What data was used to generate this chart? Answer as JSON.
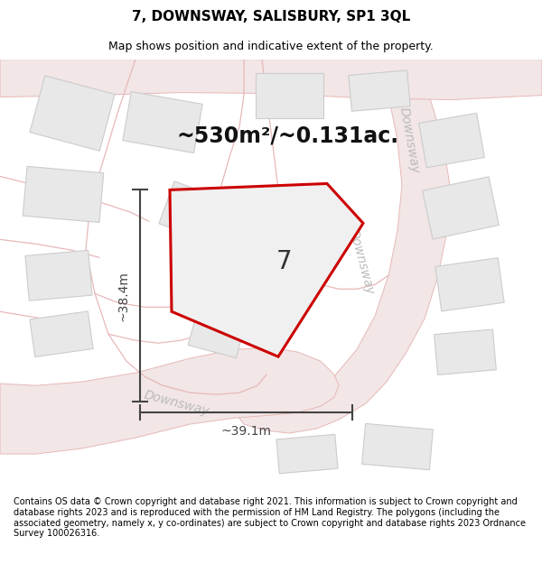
{
  "title": "7, DOWNSWAY, SALISBURY, SP1 3QL",
  "subtitle": "Map shows position and indicative extent of the property.",
  "footer": "Contains OS data © Crown copyright and database right 2021. This information is subject to Crown copyright and database rights 2023 and is reproduced with the permission of HM Land Registry. The polygons (including the associated geometry, namely x, y co-ordinates) are subject to Crown copyright and database rights 2023 Ordnance Survey 100026316.",
  "area_label": "~530m²/~0.131ac.",
  "plot_number": "7",
  "dim_height": "~38.4m",
  "dim_width": "~39.1m",
  "bg_color": "#ffffff",
  "map_bg": "#ffffff",
  "road_fill": "#f2e6e6",
  "road_stroke": "#e8b8b8",
  "building_fill": "#e8e8e8",
  "building_stroke": "#cccccc",
  "plot_stroke": "#cc0000",
  "plot_fill": "#f0f0f0",
  "dim_color": "#444444",
  "street_label_color": "#bbbbbb",
  "title_fontsize": 11,
  "subtitle_fontsize": 9,
  "footer_fontsize": 7,
  "label_fontsize": 20,
  "area_fontsize": 17,
  "dim_fontsize": 10,
  "street_fontsize": 10
}
